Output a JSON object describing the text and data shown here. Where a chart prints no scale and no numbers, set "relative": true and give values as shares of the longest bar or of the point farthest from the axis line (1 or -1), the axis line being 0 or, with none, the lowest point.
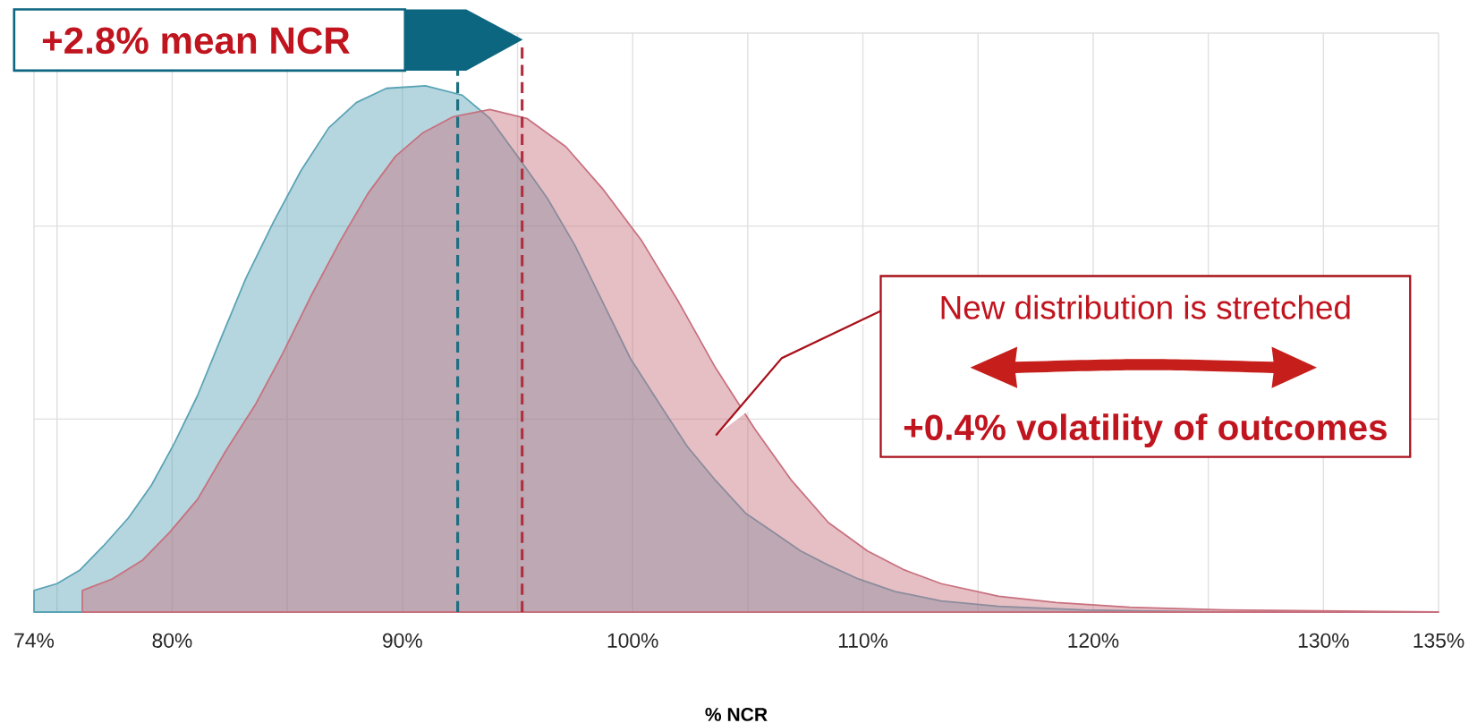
{
  "chart_data": {
    "type": "area",
    "relative": true,
    "xlabel": "% NCR",
    "xlim": [
      74,
      135
    ],
    "xticks": [
      {
        "value": 74,
        "label": "74%"
      },
      {
        "value": 75,
        "label": null
      },
      {
        "value": 80,
        "label": "80%"
      },
      {
        "value": 85,
        "label": null
      },
      {
        "value": 90,
        "label": "90%"
      },
      {
        "value": 95,
        "label": null
      },
      {
        "value": 100,
        "label": "100%"
      },
      {
        "value": 105,
        "label": null
      },
      {
        "value": 110,
        "label": "110%"
      },
      {
        "value": 115,
        "label": null
      },
      {
        "value": 120,
        "label": "120%"
      },
      {
        "value": 125,
        "label": null
      },
      {
        "value": 130,
        "label": "130%"
      },
      {
        "value": 135,
        "label": "135%"
      }
    ],
    "grid": true,
    "series": [
      {
        "color": "#5aa3b5",
        "x": [
          74.0,
          75.0,
          76.0,
          77.0,
          78.1,
          79.1,
          80.1,
          81.1,
          82.1,
          83.2,
          84.4,
          85.6,
          86.8,
          88.0,
          89.3,
          91.0,
          92.6,
          93.8,
          95.0,
          96.3,
          97.5,
          98.7,
          99.9,
          101.2,
          102.4,
          103.6,
          104.9,
          106.1,
          107.3,
          108.5,
          109.8,
          111.4,
          113.4,
          115.9,
          119.6,
          125.7,
          130.0
        ],
        "values": [
          0.041,
          0.054,
          0.08,
          0.125,
          0.179,
          0.241,
          0.321,
          0.411,
          0.518,
          0.634,
          0.741,
          0.839,
          0.92,
          0.968,
          0.995,
          1.0,
          0.982,
          0.938,
          0.866,
          0.786,
          0.696,
          0.589,
          0.482,
          0.393,
          0.313,
          0.25,
          0.188,
          0.152,
          0.116,
          0.089,
          0.063,
          0.039,
          0.021,
          0.011,
          0.004,
          0.0,
          0.0
        ]
      },
      {
        "color": "#c8707e",
        "x": [
          76.1,
          77.4,
          78.7,
          79.9,
          81.1,
          82.3,
          83.6,
          84.8,
          86.0,
          87.3,
          88.5,
          89.7,
          90.9,
          92.2,
          93.8,
          95.4,
          97.1,
          98.7,
          100.4,
          102.0,
          103.6,
          105.3,
          106.9,
          108.5,
          110.2,
          111.8,
          113.4,
          115.9,
          118.4,
          121.6,
          125.7,
          135.0
        ],
        "values": [
          0.041,
          0.063,
          0.098,
          0.152,
          0.214,
          0.304,
          0.393,
          0.491,
          0.598,
          0.705,
          0.795,
          0.866,
          0.911,
          0.941,
          0.955,
          0.938,
          0.884,
          0.804,
          0.705,
          0.589,
          0.464,
          0.348,
          0.25,
          0.17,
          0.116,
          0.08,
          0.054,
          0.03,
          0.018,
          0.009,
          0.004,
          0.0
        ]
      }
    ],
    "ref_lines": [
      {
        "axis": "x",
        "value": 92.4,
        "color": "#1f6f80",
        "line_style": "dashed"
      },
      {
        "axis": "x",
        "value": 95.2,
        "color": "#b03040",
        "line_style": "dashed"
      }
    ],
    "annotations": [
      "+2.8% mean NCR",
      "New distribution is stretched",
      "+0.4% volatility of outcomes"
    ]
  }
}
